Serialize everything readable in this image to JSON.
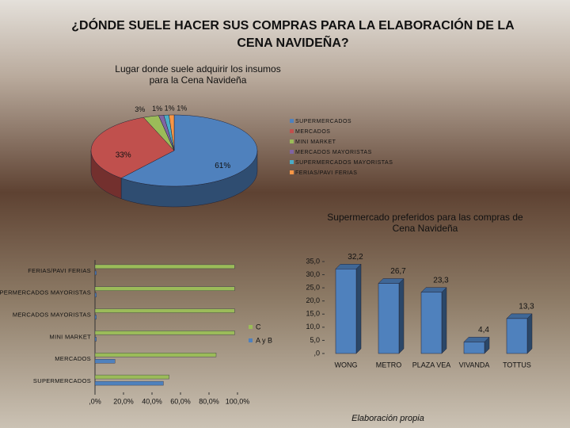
{
  "slide_title": [
    "¿DÓNDE SUELE HACER SUS COMPRAS PARA LA ELABORACIÓN DE LA",
    "CENA NAVIDEÑA?"
  ],
  "footer": "Elaboración propia",
  "chart_data": [
    {
      "type": "pie",
      "title": [
        "Lugar donde suele adquirir los insumos",
        "para la Cena Navideña"
      ],
      "categories": [
        "SUPERMERCADOS",
        "MERCADOS",
        "MINI MARKET",
        "MERCADOS MAYORISTAS",
        "SUPERMERCADOS MAYORISTAS",
        "FERIAS/PAVI FERIAS"
      ],
      "values": [
        61,
        33,
        3,
        1,
        1,
        1
      ],
      "value_labels": [
        "61%",
        "33%",
        "3%",
        "1%",
        "1%",
        "1%"
      ],
      "colors": [
        "#4f81bd",
        "#c0504d",
        "#9bbb59",
        "#8064a2",
        "#4bacc6",
        "#f79646"
      ],
      "legend": "right"
    },
    {
      "type": "hbar",
      "categories": [
        "FERIAS/PAVI FERIAS",
        "SUPERMERCADOS MAYORISTAS",
        "MERCADOS MAYORISTAS",
        "MINI MARKET",
        "MERCADOS",
        "SUPERMERCADOS"
      ],
      "series": [
        {
          "name": "C",
          "color": "#9bbb59",
          "values": [
            98,
            98,
            98,
            98,
            85,
            52
          ]
        },
        {
          "name": "A y B",
          "color": "#4f81bd",
          "values": [
            1,
            1,
            1,
            1,
            14,
            48
          ]
        }
      ],
      "xlim": [
        0,
        100
      ],
      "xticks": [
        {
          "value": 0,
          "label": ",0%"
        },
        {
          "value": 20,
          "label": "20,0%"
        },
        {
          "value": 40,
          "label": "40,0%"
        },
        {
          "value": 60,
          "label": "60,0%"
        },
        {
          "value": 80,
          "label": "80,0%"
        },
        {
          "value": 100,
          "label": "100,0%"
        }
      ],
      "legend": "right"
    },
    {
      "type": "bar3d",
      "title": [
        "Supermercado preferidos para las compras de",
        "Cena Navideña"
      ],
      "categories": [
        "WONG",
        "METRO",
        "PLAZA VEA",
        "VIVANDA",
        "TOTTUS"
      ],
      "values": [
        32.2,
        26.7,
        23.3,
        4.4,
        13.3
      ],
      "value_labels": [
        "32,2",
        "26,7",
        "23,3",
        "4,4",
        "13,3"
      ],
      "color": "#4f81bd",
      "ylim": [
        0,
        35
      ],
      "yticks": [
        {
          "value": 0,
          "label": ",0"
        },
        {
          "value": 5,
          "label": "5,0"
        },
        {
          "value": 10,
          "label": "10,0"
        },
        {
          "value": 15,
          "label": "15,0"
        },
        {
          "value": 20,
          "label": "20,0"
        },
        {
          "value": 25,
          "label": "25,0"
        },
        {
          "value": 30,
          "label": "30,0"
        },
        {
          "value": 35,
          "label": "35,0"
        }
      ]
    }
  ]
}
